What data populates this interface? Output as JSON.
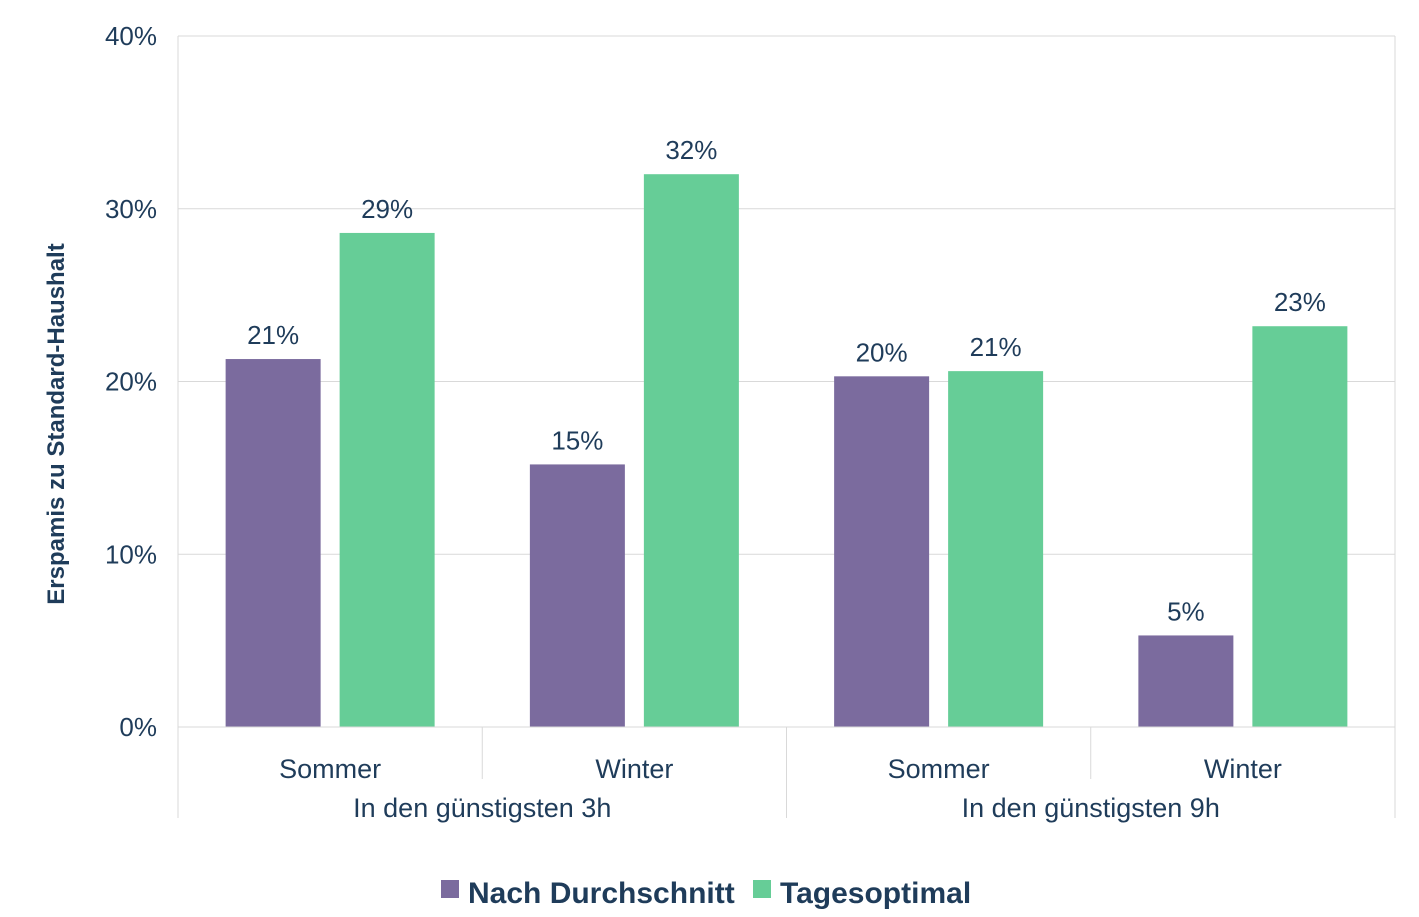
{
  "chart_data": {
    "type": "bar",
    "ylabel": "Erspamis zu Standard-Haushalt",
    "ylim": [
      0,
      40
    ],
    "yticks": [
      0,
      10,
      20,
      30,
      40
    ],
    "ytick_labels": [
      "0%",
      "10%",
      "20%",
      "30%",
      "40%"
    ],
    "grid": true,
    "legend_position": "bottom",
    "groups": [
      {
        "label": "In den günstigsten 3h",
        "categories": [
          "Sommer",
          "Winter"
        ]
      },
      {
        "label": "In den günstigsten 9h",
        "categories": [
          "Sommer",
          "Winter"
        ]
      }
    ],
    "categories": [
      "Sommer",
      "Winter",
      "Sommer",
      "Winter"
    ],
    "series": [
      {
        "name": "Nach Durchschnitt",
        "color": "#7b6b9e",
        "values": [
          21.3,
          15.2,
          20.3,
          5.3
        ],
        "labels": [
          "21%",
          "15%",
          "20%",
          "5%"
        ]
      },
      {
        "name": "Tagesoptimal",
        "color": "#66cd97",
        "values": [
          28.6,
          32.0,
          20.6,
          23.2
        ],
        "labels": [
          "29%",
          "32%",
          "21%",
          "23%"
        ]
      }
    ]
  }
}
